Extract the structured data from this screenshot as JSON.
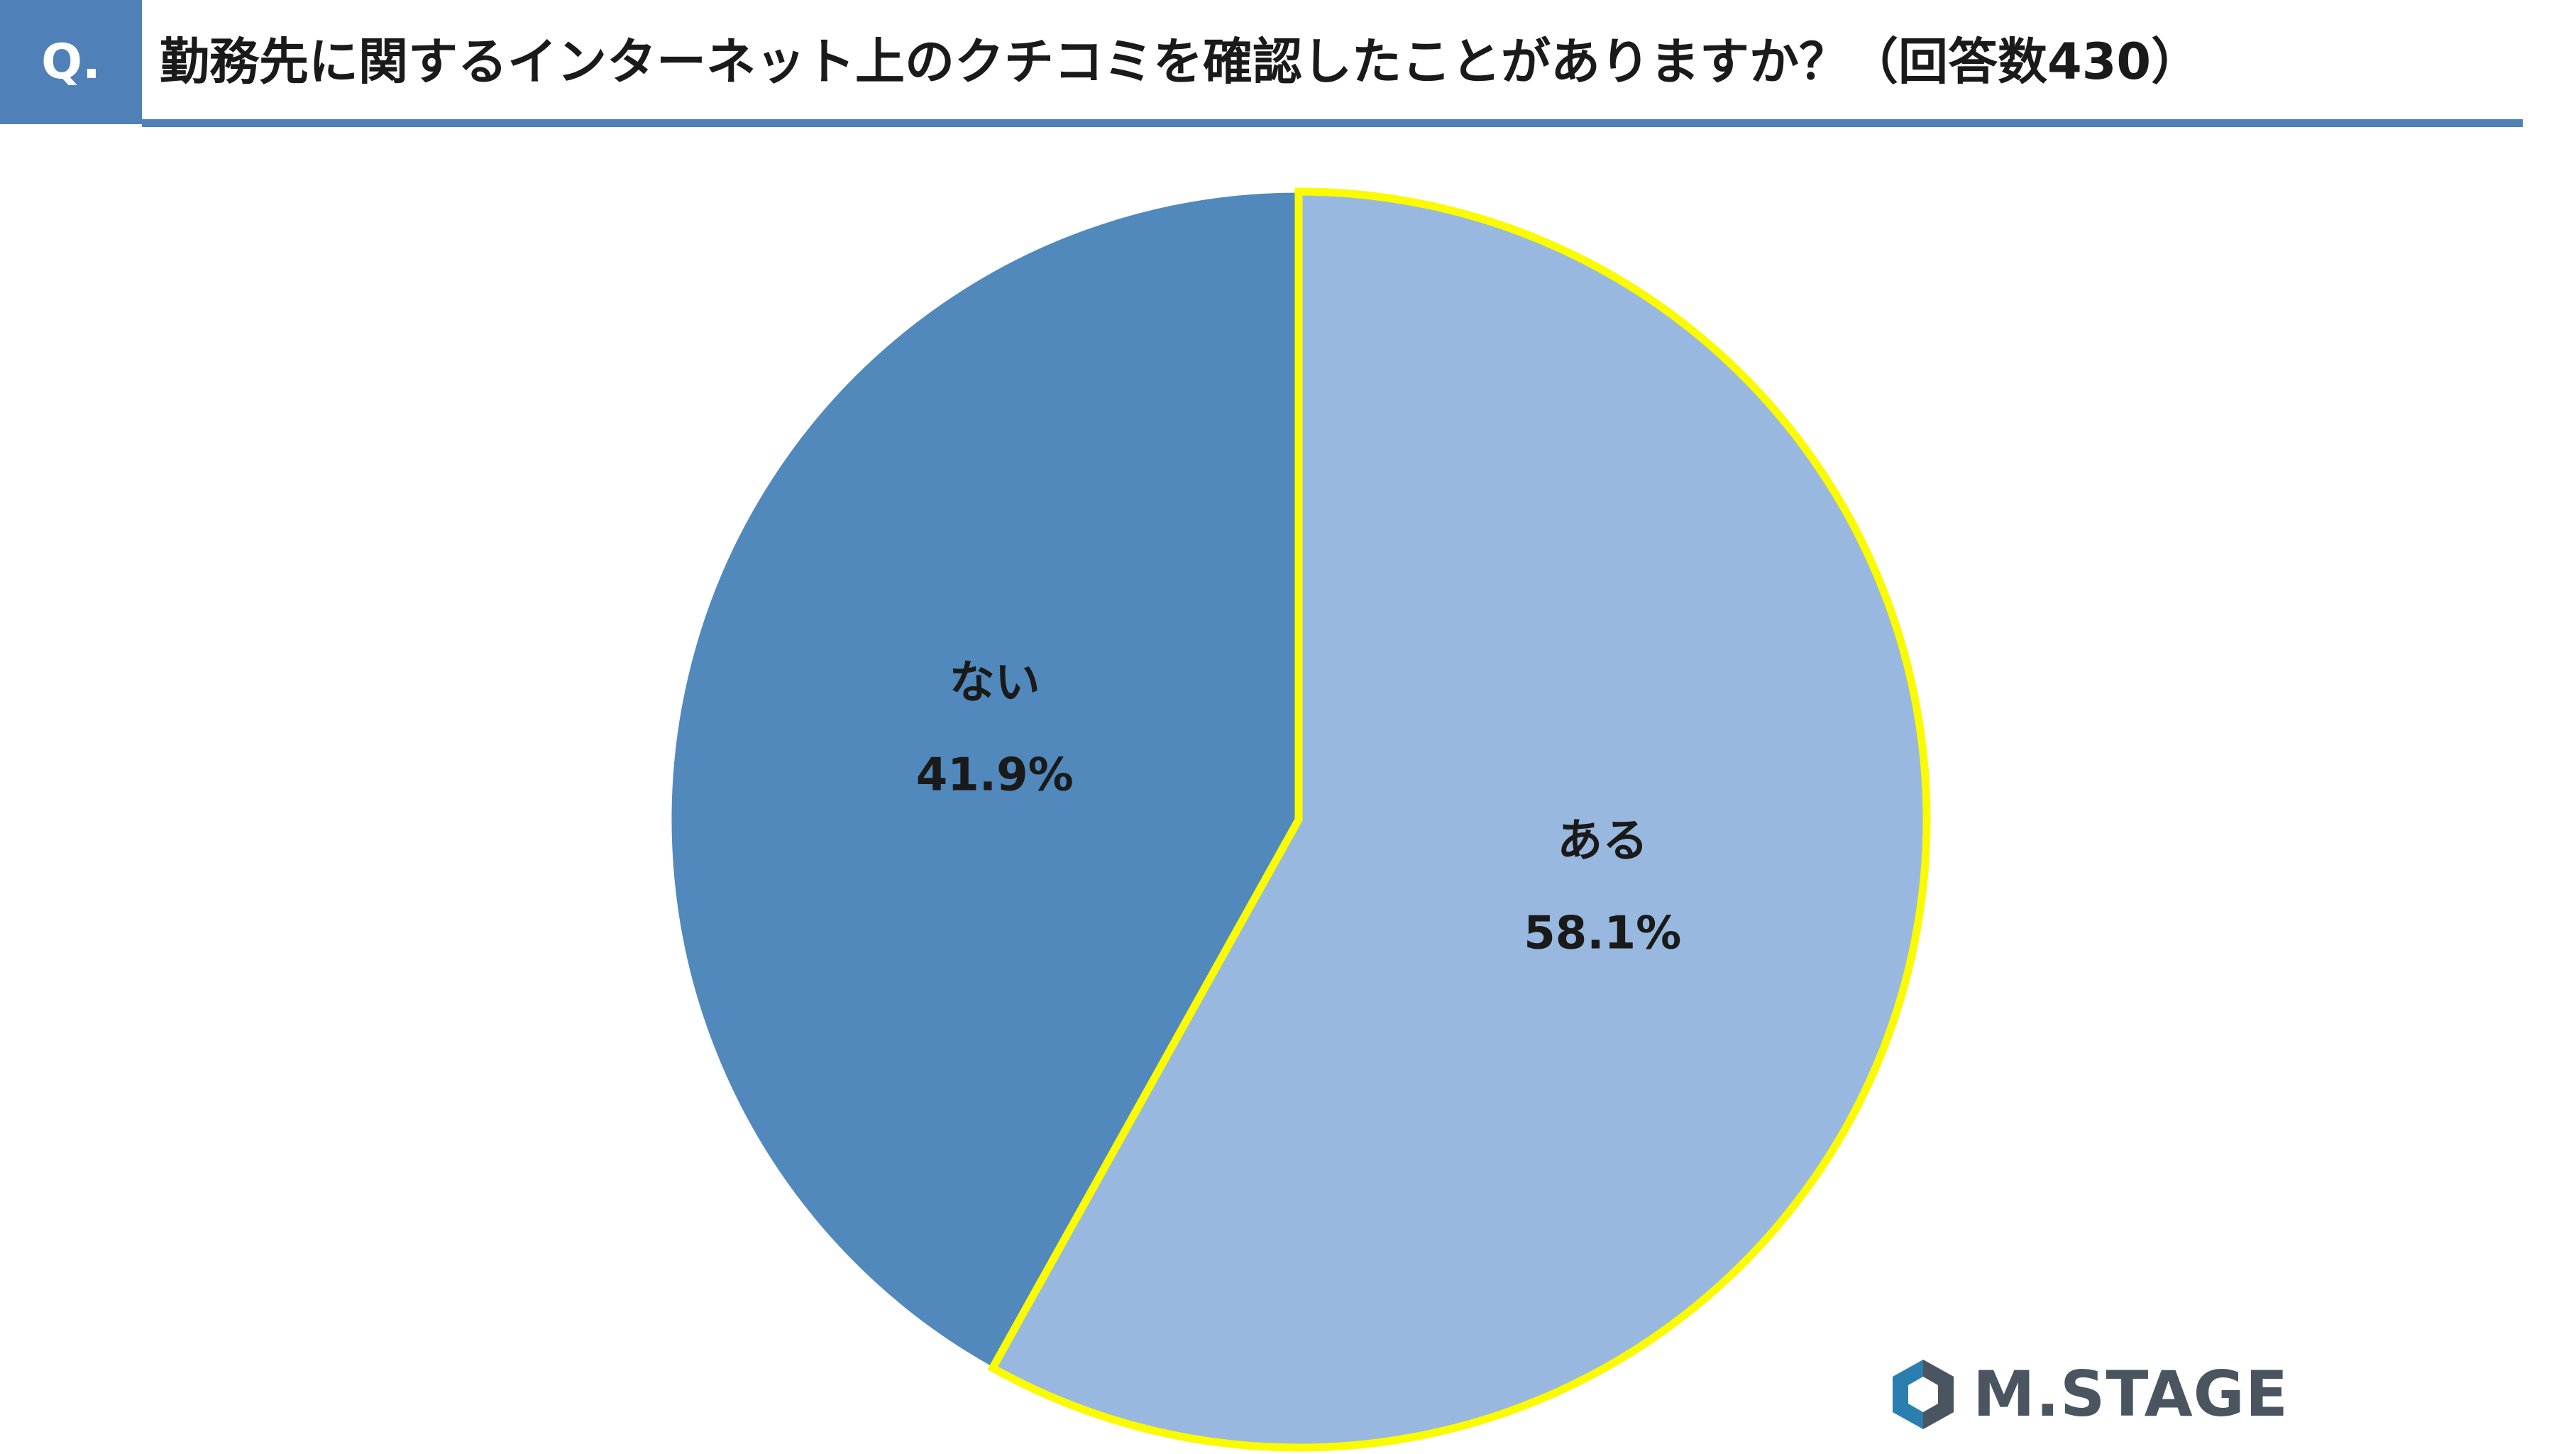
{
  "header": {
    "badge": "Q.",
    "title": "勤務先に関するインターネット上のクチコミを確認したことがありますか？（回答数430）"
  },
  "colors": {
    "header_blue": "#4f81b8",
    "slice_dark": "#5189bc",
    "slice_light": "#99b8df",
    "highlight_outline": "#fafa00"
  },
  "chart_data": {
    "type": "pie",
    "start_angle_deg": 0,
    "direction": "clockwise",
    "slices": [
      {
        "label": "ある",
        "value": 58.1,
        "value_label": "58.1%",
        "color": "#99b8df",
        "highlighted": true
      },
      {
        "label": "ない",
        "value": 41.9,
        "value_label": "41.9%",
        "color": "#5189bc",
        "highlighted": false
      }
    ],
    "legend": "none",
    "labels_inside": true
  },
  "logo": {
    "text": "M.STAGE",
    "icon": "hexagon-logo-icon"
  }
}
